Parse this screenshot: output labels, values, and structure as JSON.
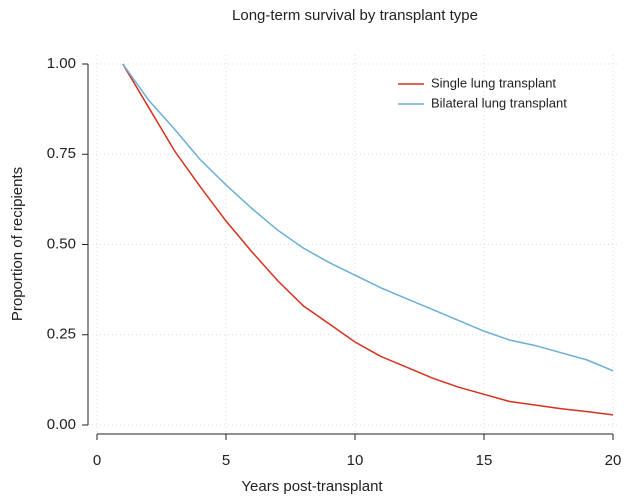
{
  "chart_data": {
    "type": "line",
    "title": "Long-term survival by transplant type",
    "x_label": "Years post-transplant",
    "y_label": "Proportion of recipients",
    "x": [
      1,
      2,
      3,
      4,
      5,
      6,
      7,
      8,
      9,
      10,
      11,
      12,
      13,
      14,
      15,
      16,
      17,
      18,
      19,
      20
    ],
    "series": [
      {
        "name": "Single lung transplant",
        "color": "#d7301f",
        "values": [
          1.0,
          0.88,
          0.76,
          0.66,
          0.565,
          0.48,
          0.4,
          0.33,
          0.28,
          0.23,
          0.19,
          0.16,
          0.13,
          0.105,
          0.085,
          0.065,
          0.055,
          0.045,
          0.037,
          0.028
        ]
      },
      {
        "name": "Bilateral lung transplant",
        "color": "#6baed6",
        "values": [
          1.0,
          0.9,
          0.82,
          0.735,
          0.665,
          0.6,
          0.54,
          0.49,
          0.45,
          0.415,
          0.38,
          0.35,
          0.32,
          0.29,
          0.26,
          0.235,
          0.22,
          0.2,
          0.18,
          0.15
        ]
      }
    ],
    "xlim": [
      0,
      20
    ],
    "xticks": [
      0,
      5,
      10,
      15,
      20
    ],
    "ylim": [
      0,
      1
    ],
    "yticks": [
      {
        "value": 0,
        "label": "0.00"
      },
      0.25,
      {
        "value": 0.5,
        "label": "0.50"
      },
      0.75,
      {
        "value": 1,
        "label": "1.00"
      }
    ],
    "grid": true,
    "legend": "top-right"
  }
}
